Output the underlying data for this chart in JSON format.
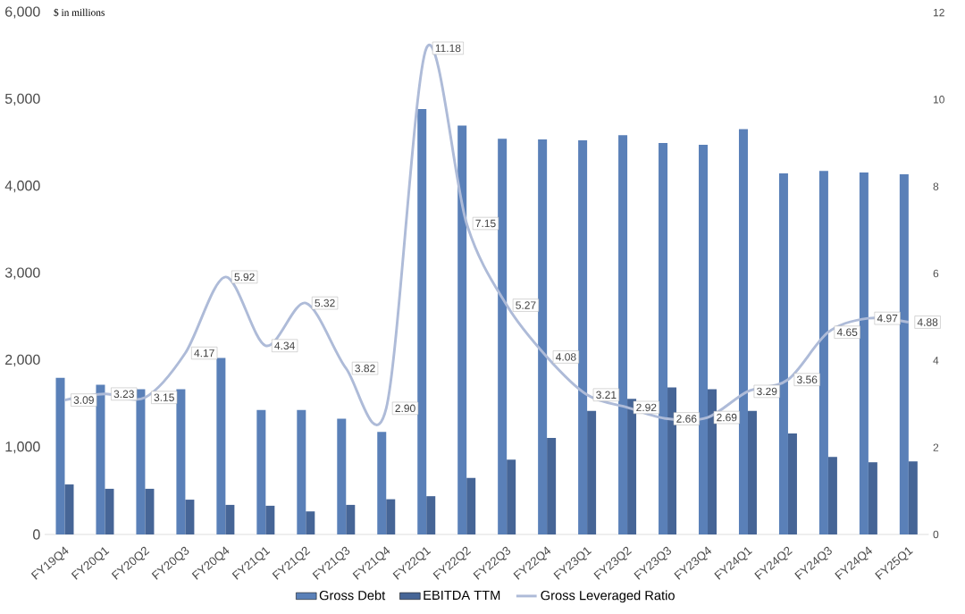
{
  "chart_data": {
    "type": "bar",
    "categories": [
      "FY19Q4",
      "FY20Q1",
      "FY20Q2",
      "FY20Q3",
      "FY20Q4",
      "FY21Q1",
      "FY21Q2",
      "FY21Q3",
      "FY21Q4",
      "FY22Q1",
      "FY22Q2",
      "FY22Q3",
      "FY22Q4",
      "FY23Q1",
      "FY23Q2",
      "FY23Q3",
      "FY23Q4",
      "FY24Q1",
      "FY24Q2",
      "FY24Q3",
      "FY24Q4",
      "FY25Q1"
    ],
    "series": [
      {
        "name": "Gross Debt",
        "color": "#5a80b8",
        "values": [
          1800,
          1720,
          1670,
          1670,
          2030,
          1430,
          1430,
          1330,
          1180,
          4890,
          4700,
          4550,
          4540,
          4530,
          4590,
          4500,
          4480,
          4660,
          4150,
          4180,
          4160,
          4140
        ]
      },
      {
        "name": "EBITDA TTM",
        "color": "#466596",
        "values": [
          575,
          525,
          525,
          400,
          340,
          330,
          265,
          340,
          405,
          440,
          650,
          860,
          1110,
          1420,
          1560,
          1690,
          1670,
          1420,
          1160,
          890,
          830,
          840
        ]
      },
      {
        "name": "Gross Leveraged Ratio",
        "type": "line",
        "axis": "y2",
        "color": "#aebbd8",
        "values": [
          3.09,
          3.23,
          3.15,
          4.17,
          5.92,
          4.34,
          5.32,
          3.82,
          2.9,
          11.18,
          7.15,
          5.27,
          4.08,
          3.21,
          2.92,
          2.66,
          2.69,
          3.29,
          3.56,
          4.65,
          4.97,
          4.88
        ],
        "value_labels": [
          "3.09",
          "3.23",
          "3.15",
          "4.17",
          "5.92",
          "4.34",
          "5.32",
          "3.82",
          "2.90",
          "11.18",
          "7.15",
          "5.27",
          "4.08",
          "3.21",
          "2.92",
          "2.66",
          "2.69",
          "3.29",
          "3.56",
          "4.65",
          "4.97",
          "4.88"
        ]
      }
    ],
    "ylim": [
      0,
      6000
    ],
    "yticks": [
      0,
      {
        "value": 1000,
        "label": "1,000"
      },
      {
        "value": 2000,
        "label": "2,000"
      },
      {
        "value": 3000,
        "label": "3,000"
      },
      {
        "value": 4000,
        "label": "4,000"
      },
      {
        "value": 5000,
        "label": "5,000"
      },
      {
        "value": 6000,
        "label": "6,000"
      }
    ],
    "y2lim": [
      0,
      12
    ],
    "y2ticks": [
      0,
      2,
      4,
      6,
      8,
      10,
      12
    ],
    "annotations": [
      "$ in millions"
    ],
    "legend": "bottom"
  }
}
